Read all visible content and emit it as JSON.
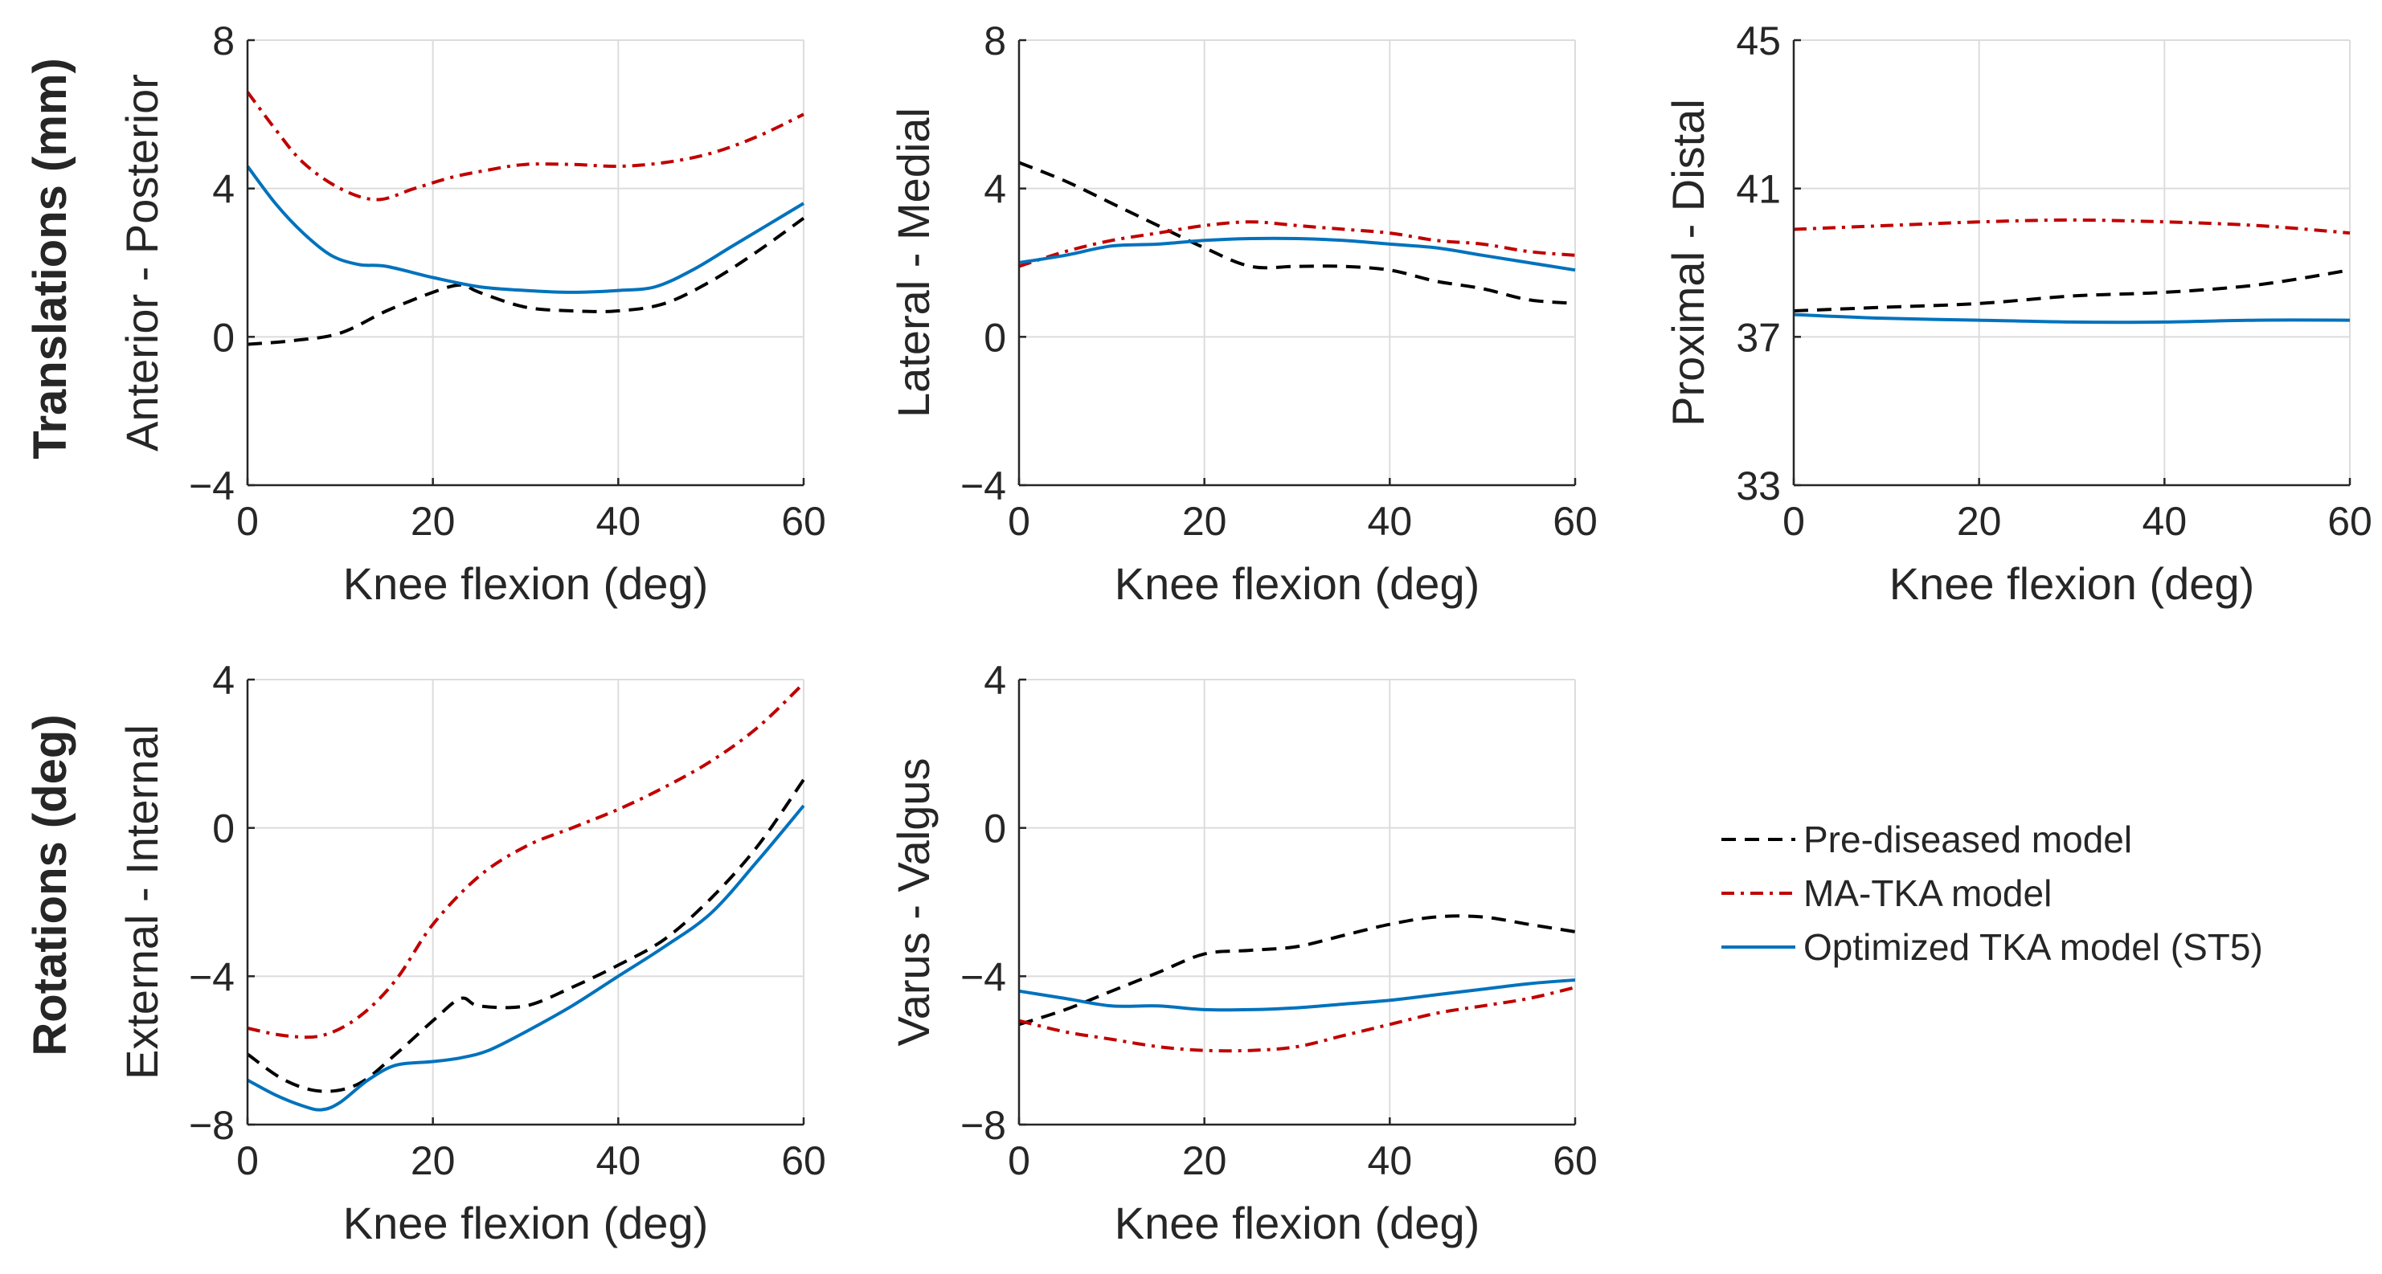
{
  "row_labels": {
    "translations": "Translations (mm)",
    "rotations": "Rotations (deg)"
  },
  "legend": {
    "entries": [
      {
        "series": "pre",
        "label": "Pre-diseased model"
      },
      {
        "series": "ma",
        "label": "MA-TKA model"
      },
      {
        "series": "opt",
        "label": "Optimized TKA model (ST5)"
      }
    ]
  },
  "series_styles": {
    "pre": {
      "color": "#000000",
      "dash": "dash"
    },
    "ma": {
      "color": "#c00000",
      "dash": "dashdot"
    },
    "opt": {
      "color": "#0072bd",
      "dash": "solid"
    }
  },
  "chart_data": [
    {
      "id": "ap",
      "type": "line",
      "title": "",
      "xlabel": "Knee flexion (deg)",
      "ylabel": "Anterior - Posterior",
      "xlim": [
        0,
        60
      ],
      "ylim": [
        -4,
        8
      ],
      "xticks": [
        0,
        20,
        40,
        60
      ],
      "yticks": [
        -4,
        0,
        4,
        8
      ],
      "grid": true,
      "series": [
        {
          "name": "Pre-diseased model",
          "key": "pre",
          "x": [
            0,
            5,
            10,
            15,
            20,
            23,
            25,
            30,
            35,
            40,
            45,
            50,
            55,
            60
          ],
          "y": [
            -0.2,
            -0.1,
            0.1,
            0.7,
            1.2,
            1.4,
            1.2,
            0.8,
            0.7,
            0.7,
            0.9,
            1.5,
            2.3,
            3.2
          ]
        },
        {
          "name": "MA-TKA model",
          "key": "ma",
          "x": [
            0,
            3,
            6,
            10,
            14,
            18,
            22,
            26,
            30,
            35,
            40,
            45,
            50,
            55,
            60
          ],
          "y": [
            6.6,
            5.6,
            4.7,
            4.0,
            3.7,
            4.0,
            4.3,
            4.5,
            4.65,
            4.65,
            4.6,
            4.7,
            4.95,
            5.4,
            6.0
          ]
        },
        {
          "name": "Optimized TKA model (ST5)",
          "key": "opt",
          "x": [
            0,
            3,
            6,
            9,
            12,
            15,
            20,
            25,
            30,
            35,
            40,
            44,
            48,
            52,
            56,
            60
          ],
          "y": [
            4.6,
            3.6,
            2.8,
            2.2,
            1.95,
            1.9,
            1.6,
            1.35,
            1.25,
            1.2,
            1.25,
            1.35,
            1.8,
            2.4,
            3.0,
            3.6
          ]
        }
      ]
    },
    {
      "id": "lm",
      "type": "line",
      "title": "",
      "xlabel": "Knee flexion (deg)",
      "ylabel": "Lateral - Medial",
      "xlim": [
        0,
        60
      ],
      "ylim": [
        -4,
        8
      ],
      "xticks": [
        0,
        20,
        40,
        60
      ],
      "yticks": [
        -4,
        0,
        4,
        8
      ],
      "grid": true,
      "series": [
        {
          "name": "Pre-diseased model",
          "key": "pre",
          "x": [
            0,
            5,
            10,
            15,
            20,
            25,
            30,
            35,
            40,
            45,
            50,
            55,
            60
          ],
          "y": [
            4.7,
            4.2,
            3.6,
            3.0,
            2.4,
            1.9,
            1.9,
            1.9,
            1.8,
            1.5,
            1.3,
            1.0,
            0.9
          ]
        },
        {
          "name": "MA-TKA model",
          "key": "ma",
          "x": [
            0,
            5,
            10,
            15,
            20,
            25,
            30,
            35,
            40,
            45,
            50,
            55,
            60
          ],
          "y": [
            1.9,
            2.3,
            2.6,
            2.8,
            3.0,
            3.1,
            3.0,
            2.9,
            2.8,
            2.6,
            2.5,
            2.3,
            2.2
          ]
        },
        {
          "name": "Optimized TKA model (ST5)",
          "key": "opt",
          "x": [
            0,
            5,
            10,
            15,
            20,
            25,
            30,
            35,
            40,
            45,
            50,
            55,
            60
          ],
          "y": [
            2.0,
            2.2,
            2.45,
            2.5,
            2.6,
            2.65,
            2.65,
            2.6,
            2.5,
            2.4,
            2.2,
            2.0,
            1.8
          ]
        }
      ]
    },
    {
      "id": "pd",
      "type": "line",
      "title": "",
      "xlabel": "Knee flexion (deg)",
      "ylabel": "Proximal - Distal",
      "xlim": [
        0,
        60
      ],
      "ylim": [
        33,
        45
      ],
      "xticks": [
        0,
        20,
        40,
        60
      ],
      "yticks": [
        33,
        37,
        41,
        45
      ],
      "grid": true,
      "series": [
        {
          "name": "Pre-diseased model",
          "key": "pre",
          "x": [
            0,
            10,
            20,
            30,
            40,
            50,
            60
          ],
          "y": [
            37.7,
            37.8,
            37.9,
            38.1,
            38.2,
            38.4,
            38.8
          ]
        },
        {
          "name": "MA-TKA model",
          "key": "ma",
          "x": [
            0,
            10,
            20,
            30,
            40,
            50,
            60
          ],
          "y": [
            39.9,
            40.0,
            40.1,
            40.15,
            40.1,
            40.0,
            39.8
          ]
        },
        {
          "name": "Optimized TKA model (ST5)",
          "key": "opt",
          "x": [
            0,
            10,
            20,
            30,
            40,
            50,
            60
          ],
          "y": [
            37.6,
            37.5,
            37.45,
            37.4,
            37.4,
            37.45,
            37.45
          ]
        }
      ]
    },
    {
      "id": "ei",
      "type": "line",
      "title": "",
      "xlabel": "Knee flexion (deg)",
      "ylabel": "External - Internal",
      "xlim": [
        0,
        60
      ],
      "ylim": [
        -8,
        4
      ],
      "xticks": [
        0,
        20,
        40,
        60
      ],
      "yticks": [
        -8,
        -4,
        0,
        4
      ],
      "grid": true,
      "series": [
        {
          "name": "Pre-diseased model",
          "key": "pre",
          "x": [
            0,
            4,
            8,
            12,
            16,
            20,
            23,
            25,
            30,
            35,
            40,
            45,
            50,
            55,
            60
          ],
          "y": [
            -6.1,
            -6.8,
            -7.1,
            -6.9,
            -6.1,
            -5.2,
            -4.6,
            -4.8,
            -4.8,
            -4.3,
            -3.7,
            -3.0,
            -1.9,
            -0.5,
            1.3
          ]
        },
        {
          "name": "MA-TKA model",
          "key": "ma",
          "x": [
            0,
            4,
            8,
            12,
            16,
            20,
            25,
            30,
            35,
            40,
            45,
            50,
            55,
            60
          ],
          "y": [
            -5.4,
            -5.6,
            -5.6,
            -5.1,
            -4.1,
            -2.6,
            -1.3,
            -0.5,
            0.0,
            0.5,
            1.1,
            1.8,
            2.7,
            3.9
          ]
        },
        {
          "name": "Optimized TKA model (ST5)",
          "key": "opt",
          "x": [
            0,
            3,
            6,
            8,
            10,
            13,
            16,
            20,
            23,
            26,
            30,
            35,
            40,
            45,
            50,
            55,
            60
          ],
          "y": [
            -6.8,
            -7.2,
            -7.5,
            -7.6,
            -7.4,
            -6.8,
            -6.4,
            -6.3,
            -6.2,
            -6.0,
            -5.5,
            -4.8,
            -4.0,
            -3.2,
            -2.3,
            -0.9,
            0.6
          ]
        }
      ]
    },
    {
      "id": "vv",
      "type": "line",
      "title": "",
      "xlabel": "Knee flexion (deg)",
      "ylabel": "Varus - Valgus",
      "xlim": [
        0,
        60
      ],
      "ylim": [
        -8,
        4
      ],
      "xticks": [
        0,
        20,
        40,
        60
      ],
      "yticks": [
        -8,
        -4,
        0,
        4
      ],
      "grid": true,
      "series": [
        {
          "name": "Pre-diseased model",
          "key": "pre",
          "x": [
            0,
            5,
            10,
            15,
            20,
            25,
            30,
            35,
            40,
            45,
            50,
            55,
            60
          ],
          "y": [
            -5.3,
            -4.9,
            -4.4,
            -3.9,
            -3.4,
            -3.3,
            -3.2,
            -2.9,
            -2.6,
            -2.4,
            -2.4,
            -2.6,
            -2.8
          ]
        },
        {
          "name": "MA-TKA model",
          "key": "ma",
          "x": [
            0,
            5,
            10,
            15,
            20,
            25,
            30,
            35,
            40,
            45,
            50,
            55,
            60
          ],
          "y": [
            -5.2,
            -5.5,
            -5.7,
            -5.9,
            -6.0,
            -6.0,
            -5.9,
            -5.6,
            -5.3,
            -5.0,
            -4.8,
            -4.6,
            -4.3
          ]
        },
        {
          "name": "Optimized TKA model (ST5)",
          "key": "opt",
          "x": [
            0,
            5,
            10,
            15,
            20,
            25,
            30,
            35,
            40,
            45,
            50,
            55,
            60
          ],
          "y": [
            -4.4,
            -4.6,
            -4.8,
            -4.8,
            -4.9,
            -4.9,
            -4.85,
            -4.75,
            -4.65,
            -4.5,
            -4.35,
            -4.2,
            -4.1
          ]
        }
      ]
    }
  ]
}
